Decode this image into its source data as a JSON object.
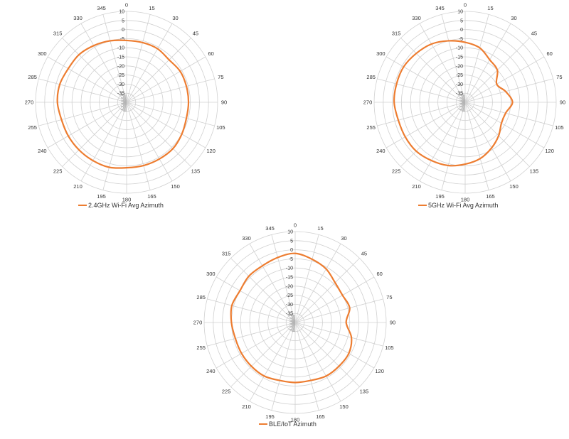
{
  "chart_data": [
    {
      "type": "polar-line",
      "name": "2.4GHz Wi-Fi Avg Azimuth",
      "series": [
        {
          "name": "2.4GHz Wi-Fi Avg Azimuth",
          "color": "#ED7D31",
          "angles": [
            0,
            15,
            30,
            45,
            60,
            75,
            90,
            105,
            120,
            135,
            150,
            165,
            180,
            195,
            210,
            225,
            240,
            255,
            270,
            285,
            300,
            315,
            330,
            345
          ],
          "values": [
            -6,
            -6,
            -6,
            -7,
            -6,
            -6,
            -6,
            -6,
            -5,
            -4,
            -4,
            -4,
            -4,
            -3,
            -3,
            -3,
            -3,
            -3,
            -2,
            -2,
            -3,
            -3,
            -4,
            -5
          ]
        }
      ],
      "r_ticks": [
        "10",
        "5",
        "0",
        "-5",
        "-10",
        "-15",
        "-20",
        "-25",
        "-30",
        "-35"
      ],
      "rlim": [
        -40,
        10
      ],
      "theta_ticks": [
        "0",
        "15",
        "30",
        "45",
        "60",
        "75",
        "90",
        "105",
        "120",
        "135",
        "150",
        "165",
        "180",
        "195",
        "210",
        "225",
        "240",
        "255",
        "270",
        "285",
        "300",
        "315",
        "330",
        "345"
      ],
      "legend_position": "bottom"
    },
    {
      "type": "polar-line",
      "name": "5GHz Wi-Fi Avg Azimuth",
      "series": [
        {
          "name": "5GHz Wi-Fi Avg Azimuth",
          "color": "#ED7D31",
          "angles": [
            0,
            15,
            30,
            45,
            60,
            75,
            90,
            105,
            120,
            135,
            150,
            165,
            180,
            195,
            210,
            225,
            240,
            255,
            270,
            285,
            300,
            315,
            330,
            345
          ],
          "values": [
            -7,
            -9,
            -13,
            -15,
            -20,
            -17,
            -14,
            -17,
            -17,
            -14,
            -11,
            -8,
            -6,
            -4,
            -3,
            -2,
            -2,
            -2,
            -1,
            -1,
            -1,
            -2,
            -3,
            -5
          ]
        }
      ],
      "r_ticks": [
        "10",
        "5",
        "0",
        "-5",
        "-10",
        "-15",
        "-20",
        "-25",
        "-30",
        "-35"
      ],
      "rlim": [
        -40,
        10
      ],
      "theta_ticks": [
        "0",
        "15",
        "30",
        "45",
        "60",
        "75",
        "90",
        "105",
        "120",
        "135",
        "150",
        "165",
        "180",
        "195",
        "210",
        "225",
        "240",
        "255",
        "270",
        "285",
        "300",
        "315",
        "330",
        "345"
      ],
      "legend_position": "bottom"
    },
    {
      "type": "polar-line",
      "name": "BLE/IoT Azimuth",
      "series": [
        {
          "name": "BLE/IoT Azimuth",
          "color": "#ED7D31",
          "angles": [
            0,
            15,
            30,
            45,
            60,
            75,
            90,
            105,
            120,
            135,
            150,
            165,
            180,
            195,
            210,
            225,
            240,
            255,
            270,
            285,
            300,
            315,
            330,
            345
          ],
          "values": [
            -2,
            -4,
            -6,
            -9,
            -10,
            -9,
            -12,
            -8,
            -6,
            -6,
            -6,
            -7,
            -7,
            -7,
            -6,
            -6,
            -6,
            -6,
            -5,
            -4,
            -5,
            -4,
            -4,
            -3
          ]
        }
      ],
      "r_ticks": [
        "10",
        "5",
        "0",
        "-5",
        "-10",
        "-15",
        "-20",
        "-25",
        "-30",
        "-35"
      ],
      "rlim": [
        -40,
        10
      ],
      "theta_ticks": [
        "0",
        "15",
        "30",
        "45",
        "60",
        "75",
        "90",
        "105",
        "120",
        "135",
        "150",
        "165",
        "180",
        "195",
        "210",
        "225",
        "240",
        "255",
        "270",
        "285",
        "300",
        "315",
        "330",
        "345"
      ],
      "legend_position": "bottom"
    }
  ],
  "legends": [
    {
      "label": "2.4GHz Wi-Fi Avg Azimuth"
    },
    {
      "label": "5GHz Wi-Fi Avg Azimuth"
    },
    {
      "label": "BLE/IoT Azimuth"
    }
  ],
  "colors": {
    "series": "#ED7D31",
    "grid": "#D0D0D0",
    "text": "#333333"
  }
}
